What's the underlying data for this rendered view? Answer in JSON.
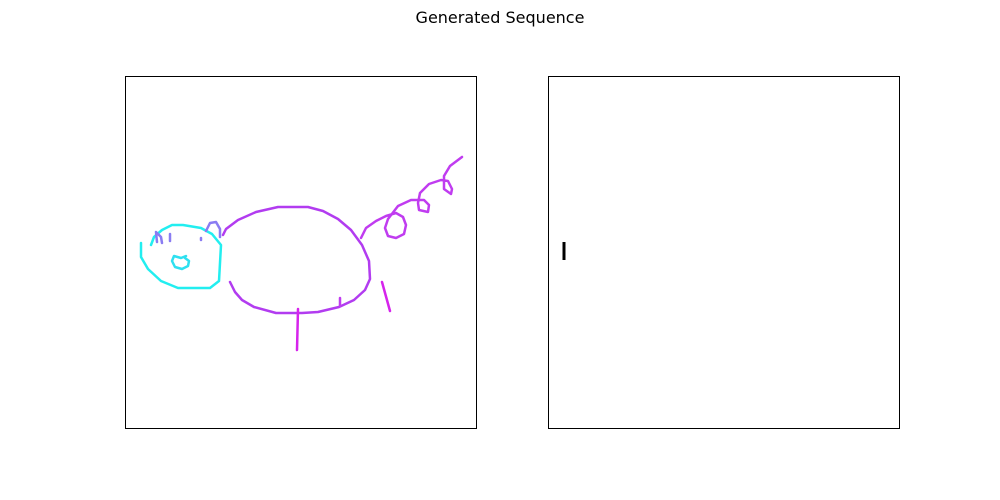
{
  "title": "Generated Sequence",
  "colors": {
    "head": "#22eef0",
    "face_detail": "#2ee0f0",
    "ears": "#8a7cf2",
    "body": "#b23cf0",
    "tail": "#c03cf0",
    "legs": "#d624ec",
    "right_stroke": "#000000"
  },
  "panels": [
    {
      "name": "drawing-panel-left",
      "content": "pig-sketch"
    },
    {
      "name": "drawing-panel-right",
      "content": "single-stroke"
    }
  ]
}
